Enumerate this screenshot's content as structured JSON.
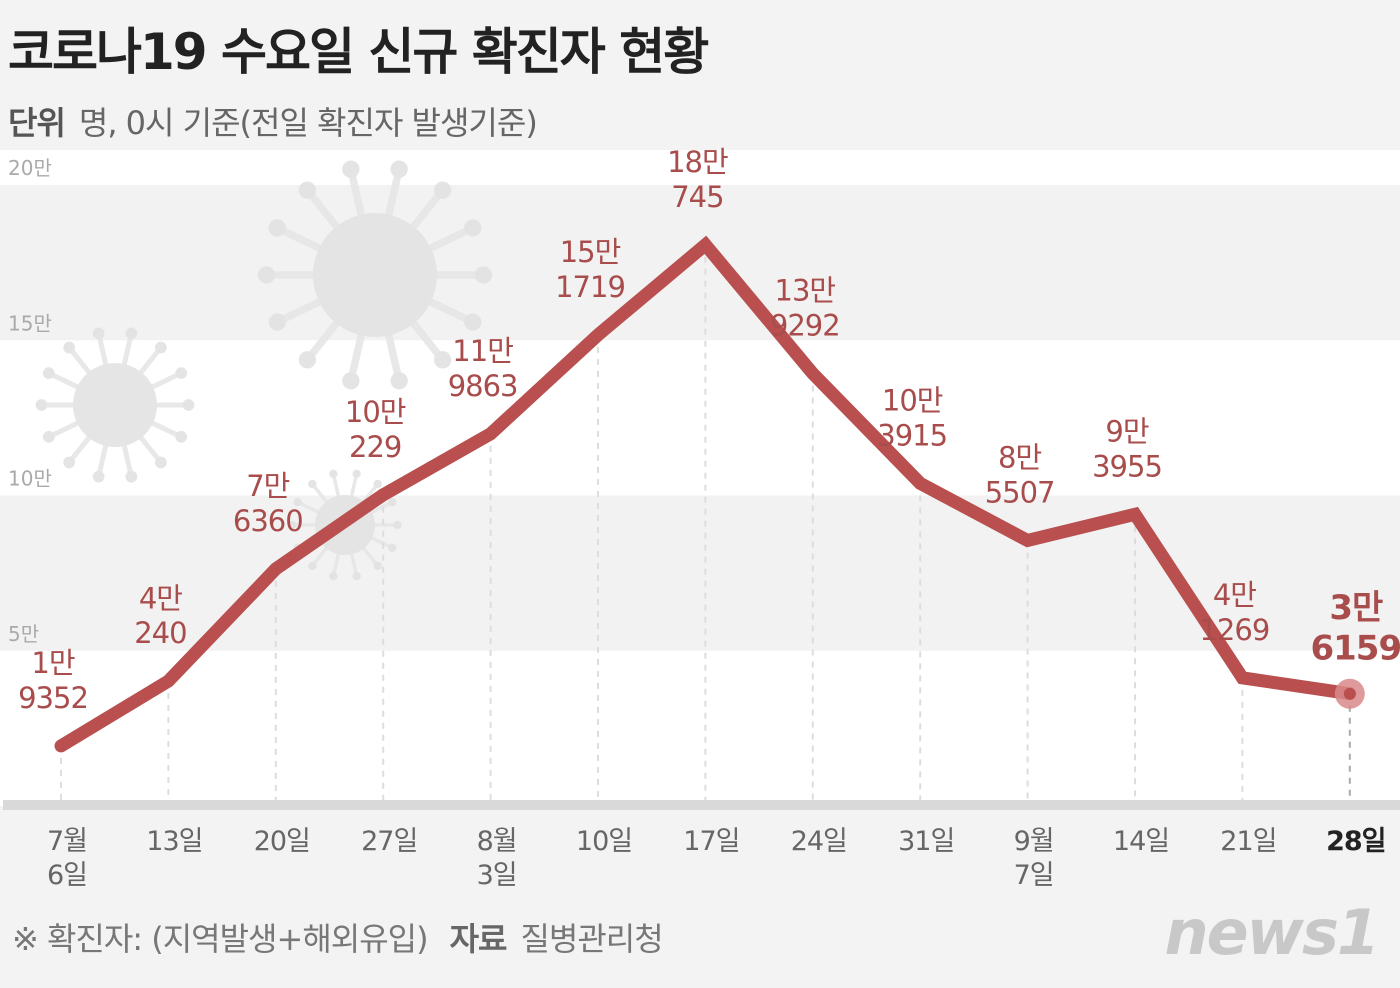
{
  "title": "코로나19 수요일 신규 확진자 현황",
  "subtitle": {
    "unit_label": "단위",
    "unit_text": "명, 0시 기준(전일 확진자 발생기준)"
  },
  "footnote": {
    "note": "※ 확진자: (지역발생+해외유입)",
    "source_label": "자료",
    "source": "질병관리청"
  },
  "logo": "news1",
  "colors": {
    "line": "#b9504f",
    "label": "#a84c4c",
    "band": "#f2f2f2",
    "axis": "#d9d9d9"
  },
  "chart_data": {
    "type": "line",
    "title": "코로나19 수요일 신규 확진자 현황",
    "ylim": [
      0,
      200000
    ],
    "ytick_labels": [
      "5만",
      "10만",
      "15만",
      "20만"
    ],
    "yticks": [
      50000,
      100000,
      150000,
      200000
    ],
    "categories": [
      "7월\n6일",
      "13일",
      "20일",
      "27일",
      "8월\n3일",
      "10일",
      "17일",
      "24일",
      "31일",
      "9월\n7일",
      "14일",
      "21일",
      "28일"
    ],
    "values": [
      19352,
      40240,
      76360,
      100229,
      119863,
      151719,
      180745,
      139292,
      103915,
      85507,
      93955,
      41269,
      36159
    ],
    "data_labels": [
      [
        "1만",
        "9352"
      ],
      [
        "4만",
        "240"
      ],
      [
        "7만",
        "6360"
      ],
      [
        "10만",
        "229"
      ],
      [
        "11만",
        "9863"
      ],
      [
        "15만",
        "1719"
      ],
      [
        "18만",
        "745"
      ],
      [
        "13만",
        "9292"
      ],
      [
        "10만",
        "3915"
      ],
      [
        "8만",
        "5507"
      ],
      [
        "9만",
        "3955"
      ],
      [
        "4만",
        "1269"
      ],
      [
        "3만",
        "6159"
      ]
    ],
    "highlight_last": true,
    "grid": "alternating bands"
  }
}
